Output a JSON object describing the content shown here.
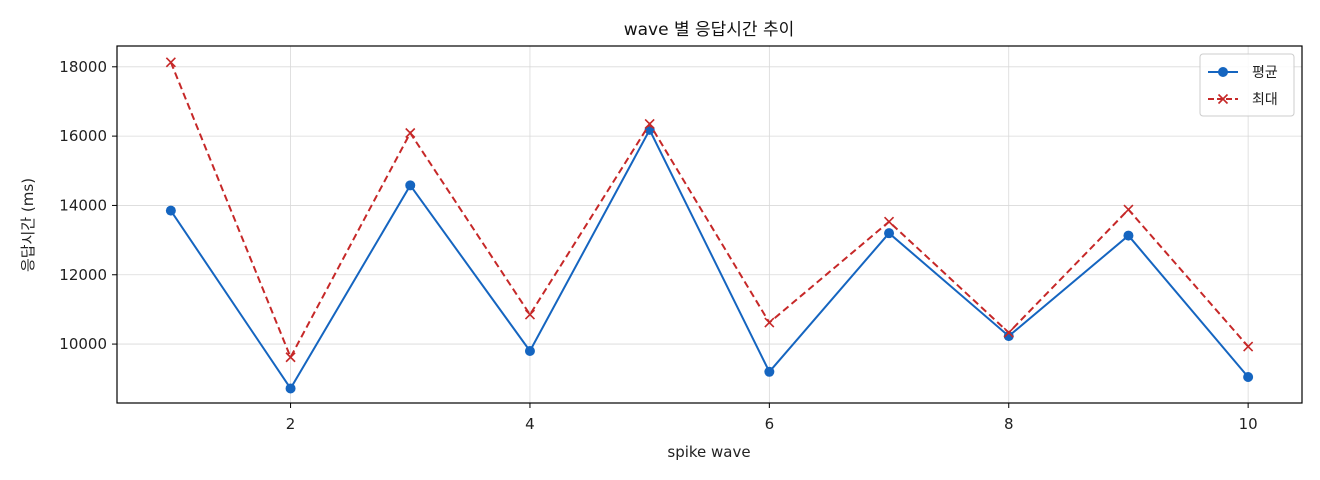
{
  "chart_data": {
    "type": "line",
    "title": "wave 별 응답시간 추이",
    "xlabel": "spike wave",
    "ylabel": "응답시간 (ms)",
    "x": [
      1,
      2,
      3,
      4,
      5,
      6,
      7,
      8,
      9,
      10
    ],
    "xlim": [
      0.55,
      10.45
    ],
    "ylim": [
      8300,
      18600
    ],
    "xticks": [
      2,
      4,
      6,
      8,
      10
    ],
    "yticks": [
      10000,
      12000,
      14000,
      16000,
      18000
    ],
    "grid": true,
    "legend_position": "top-right",
    "series": [
      {
        "name": "평균",
        "values": [
          13850,
          8720,
          14580,
          9800,
          16180,
          9200,
          13200,
          10230,
          13130,
          9050
        ],
        "color": "#1565c0",
        "line_style": "solid",
        "marker": "circle"
      },
      {
        "name": "최대",
        "values": [
          18130,
          9620,
          16090,
          10850,
          16350,
          10620,
          13530,
          10330,
          13880,
          9930
        ],
        "color": "#c62828",
        "line_style": "dashed",
        "marker": "x"
      }
    ]
  }
}
